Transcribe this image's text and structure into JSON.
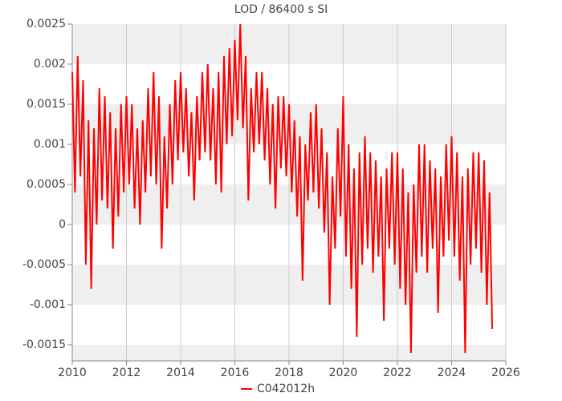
{
  "chart_data": {
    "type": "line",
    "title": "LOD / 86400 s SI",
    "x": [
      2010,
      2010.1,
      2010.2,
      2010.3,
      2010.4,
      2010.5,
      2010.6,
      2010.7,
      2010.8,
      2010.9,
      2011,
      2011.1,
      2011.2,
      2011.3,
      2011.4,
      2011.5,
      2011.6,
      2011.7,
      2011.8,
      2011.9,
      2012,
      2012.1,
      2012.2,
      2012.3,
      2012.4,
      2012.5,
      2012.6,
      2012.7,
      2012.8,
      2012.9,
      2013,
      2013.1,
      2013.2,
      2013.3,
      2013.4,
      2013.5,
      2013.6,
      2013.7,
      2013.8,
      2013.9,
      2014,
      2014.1,
      2014.2,
      2014.3,
      2014.4,
      2014.5,
      2014.6,
      2014.7,
      2014.8,
      2014.9,
      2015,
      2015.1,
      2015.2,
      2015.3,
      2015.4,
      2015.5,
      2015.6,
      2015.7,
      2015.8,
      2015.9,
      2016,
      2016.1,
      2016.2,
      2016.3,
      2016.4,
      2016.5,
      2016.6,
      2016.7,
      2016.8,
      2016.9,
      2017,
      2017.1,
      2017.2,
      2017.3,
      2017.4,
      2017.5,
      2017.6,
      2017.7,
      2017.8,
      2017.9,
      2018,
      2018.1,
      2018.2,
      2018.3,
      2018.4,
      2018.5,
      2018.6,
      2018.7,
      2018.8,
      2018.9,
      2019,
      2019.1,
      2019.2,
      2019.3,
      2019.4,
      2019.5,
      2019.6,
      2019.7,
      2019.8,
      2019.9,
      2020,
      2020.1,
      2020.2,
      2020.3,
      2020.4,
      2020.5,
      2020.6,
      2020.7,
      2020.8,
      2020.9,
      2021,
      2021.1,
      2021.2,
      2021.3,
      2021.4,
      2021.5,
      2021.6,
      2021.7,
      2021.8,
      2021.9,
      2022,
      2022.1,
      2022.2,
      2022.3,
      2022.4,
      2022.5,
      2022.6,
      2022.7,
      2022.8,
      2022.9,
      2023,
      2023.1,
      2023.2,
      2023.3,
      2023.4,
      2023.5,
      2023.6,
      2023.7,
      2023.8,
      2023.9,
      2024,
      2024.1,
      2024.2,
      2024.3,
      2024.4,
      2024.5,
      2024.6,
      2024.7,
      2024.8,
      2024.9,
      2025,
      2025.1,
      2025.2,
      2025.3,
      2025.4,
      2025.5
    ],
    "series": [
      {
        "name": "C042012h",
        "color": "#ff0000",
        "values": [
          0.0019,
          0.0004,
          0.0021,
          0.0006,
          0.0018,
          -0.0005,
          0.0013,
          -0.0008,
          0.0012,
          0.0,
          0.0017,
          0.0003,
          0.0016,
          0.0002,
          0.0014,
          -0.0003,
          0.0012,
          0.0001,
          0.0015,
          0.0004,
          0.0016,
          0.0005,
          0.0015,
          0.0002,
          0.0012,
          0.0,
          0.0013,
          0.0004,
          0.0017,
          0.0006,
          0.0019,
          0.0005,
          0.0016,
          -0.0003,
          0.0011,
          0.0002,
          0.0015,
          0.0005,
          0.0018,
          0.0008,
          0.0019,
          0.0009,
          0.0017,
          0.0006,
          0.0014,
          0.0003,
          0.0016,
          0.0008,
          0.0019,
          0.0009,
          0.002,
          0.0008,
          0.0017,
          0.0005,
          0.0019,
          0.0004,
          0.0021,
          0.001,
          0.0022,
          0.0011,
          0.0023,
          0.0013,
          0.0025,
          0.0012,
          0.0021,
          0.0003,
          0.0017,
          0.0009,
          0.0019,
          0.001,
          0.0019,
          0.0008,
          0.0017,
          0.0005,
          0.0015,
          0.0002,
          0.0016,
          0.0007,
          0.0016,
          0.0006,
          0.0015,
          0.0004,
          0.0013,
          0.0001,
          0.0011,
          -0.0007,
          0.001,
          0.0003,
          0.0014,
          0.0004,
          0.0015,
          0.0002,
          0.0012,
          -0.0001,
          0.0009,
          -0.001,
          0.0006,
          -0.0003,
          0.0012,
          0.0001,
          0.0016,
          -0.0004,
          0.001,
          -0.0008,
          0.0007,
          -0.0014,
          0.0009,
          -0.0005,
          0.0011,
          -0.0003,
          0.0009,
          -0.0006,
          0.0008,
          -0.0004,
          0.0006,
          -0.0012,
          0.0007,
          -0.0003,
          0.0009,
          -0.0005,
          0.0009,
          -0.0008,
          0.0007,
          -0.001,
          0.0004,
          -0.0016,
          0.0005,
          -0.0006,
          0.001,
          -0.0004,
          0.001,
          -0.0006,
          0.0008,
          -0.0003,
          0.0007,
          -0.0011,
          0.0006,
          -0.0004,
          0.001,
          -0.0002,
          0.0011,
          -0.0004,
          0.0009,
          -0.0007,
          0.0006,
          -0.0016,
          0.0007,
          -0.0005,
          0.0009,
          -0.0003,
          0.0009,
          -0.0006,
          0.0008,
          -0.001,
          0.0004,
          -0.0013
        ]
      }
    ],
    "xlim": [
      2010,
      2026
    ],
    "xticks": [
      2010,
      2012,
      2014,
      2016,
      2018,
      2020,
      2022,
      2024,
      2026
    ],
    "ylim": [
      -0.0017,
      0.0025
    ],
    "yticks": [
      -0.0015,
      -0.001,
      -0.0005,
      0,
      0.0005,
      0.001,
      0.0015,
      0.002,
      0.0025
    ],
    "grid": true,
    "legend": "bottom"
  }
}
